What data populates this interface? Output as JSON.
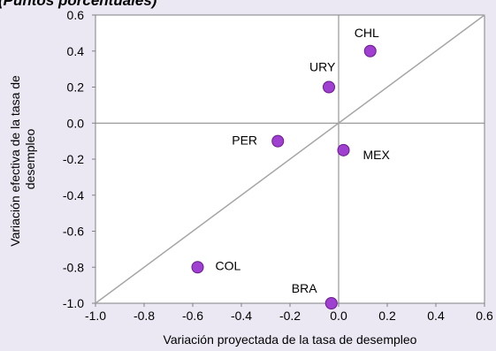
{
  "colors": {
    "background": "#ebe8f3",
    "plot_area": "#ffffff",
    "point_fill": "#a040d0",
    "point_stroke": "#6a1a8e",
    "diagonal": "#a6a6a6",
    "zero_lines": "#808080"
  },
  "chart_data": {
    "type": "scatter",
    "subtitle": "(Puntos porcentuales)",
    "xlabel": "Variación proyectada de la tasa de desempleo",
    "ylabel": "Variación efectiva de la tasa de desempleo",
    "xlim": [
      -1.0,
      0.6
    ],
    "ylim": [
      -1.0,
      0.6
    ],
    "x_ticks": [
      "-1.0",
      "-0.8",
      "-0.6",
      "-0.4",
      "-0.2",
      "0.0",
      "0.2",
      "0.4",
      "0.6"
    ],
    "y_ticks": [
      "0.6",
      "0.4",
      "0.2",
      "0.0",
      "-0.2",
      "-0.4",
      "-0.6",
      "-0.8",
      "-1.0"
    ],
    "grid": false,
    "reference_line": "y = x",
    "points": [
      {
        "label": "CHL",
        "x": 0.13,
        "y": 0.4
      },
      {
        "label": "URY",
        "x": -0.04,
        "y": 0.2
      },
      {
        "label": "PER",
        "x": -0.25,
        "y": -0.1
      },
      {
        "label": "MEX",
        "x": 0.02,
        "y": -0.15
      },
      {
        "label": "COL",
        "x": -0.58,
        "y": -0.8
      },
      {
        "label": "BRA",
        "x": -0.03,
        "y": -1.0
      }
    ]
  }
}
